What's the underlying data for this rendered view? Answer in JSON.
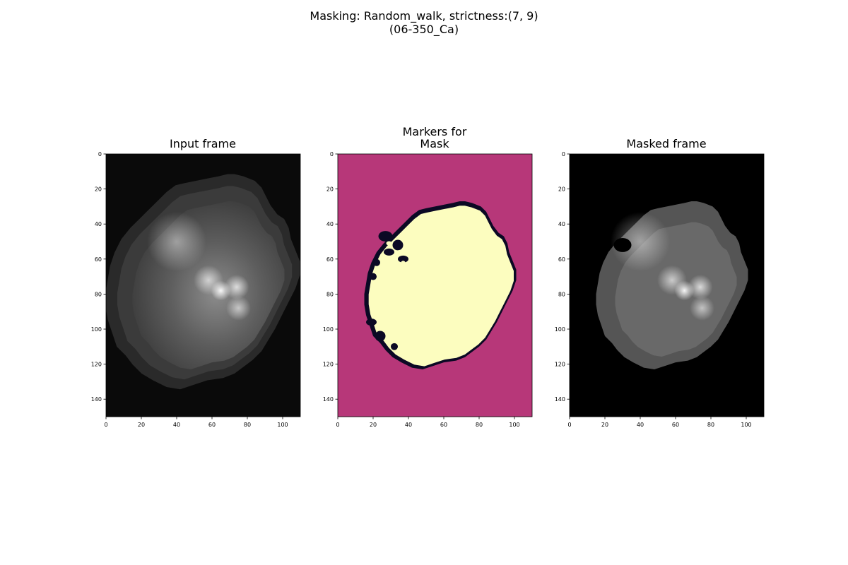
{
  "figure": {
    "suptitle_lines": [
      "Masking: Random_walk, strictness:(7, 9)",
      "(06-350_Ca)"
    ]
  },
  "panels": [
    {
      "title_lines": [
        "Input frame"
      ],
      "image": "grayscale fluorescence frame of a heart",
      "colormap": "gray",
      "x_ticks": [
        0,
        20,
        40,
        60,
        80,
        100
      ],
      "y_ticks": [
        0,
        20,
        40,
        60,
        80,
        100,
        120,
        140
      ]
    },
    {
      "title_lines": [
        "Markers for",
        "Mask"
      ],
      "image": "marker label map: background, boundary, foreground",
      "colormap": "magma",
      "x_ticks": [
        0,
        20,
        40,
        60,
        80,
        100
      ],
      "y_ticks": [
        0,
        20,
        40,
        60,
        80,
        100,
        120,
        140
      ]
    },
    {
      "title_lines": [
        "Masked frame"
      ],
      "image": "masked grayscale heart on black background",
      "colormap": "gray",
      "x_ticks": [
        0,
        20,
        40,
        60,
        80,
        100
      ],
      "y_ticks": [
        0,
        20,
        40,
        60,
        80,
        100,
        120,
        140
      ]
    }
  ],
  "image_extent": {
    "x": [
      0,
      110
    ],
    "y": [
      0,
      150
    ]
  },
  "mask_outline": [
    [
      72,
      27
    ],
    [
      76,
      28
    ],
    [
      81,
      30
    ],
    [
      84,
      33
    ],
    [
      86,
      37
    ],
    [
      88,
      41
    ],
    [
      91,
      45
    ],
    [
      94,
      47
    ],
    [
      96,
      51
    ],
    [
      97,
      56
    ],
    [
      99,
      61
    ],
    [
      101,
      66
    ],
    [
      101,
      72
    ],
    [
      99,
      78
    ],
    [
      96,
      84
    ],
    [
      93,
      90
    ],
    [
      90,
      96
    ],
    [
      87,
      101
    ],
    [
      84,
      106
    ],
    [
      80,
      110
    ],
    [
      76,
      113
    ],
    [
      72,
      116
    ],
    [
      67,
      118
    ],
    [
      60,
      119
    ],
    [
      54,
      121
    ],
    [
      48,
      123
    ],
    [
      42,
      122
    ],
    [
      36,
      119
    ],
    [
      31,
      116
    ],
    [
      27,
      112
    ],
    [
      24,
      108
    ],
    [
      20,
      104
    ],
    [
      18,
      98
    ],
    [
      16,
      92
    ],
    [
      15,
      86
    ],
    [
      15,
      80
    ],
    [
      16,
      74
    ],
    [
      17,
      68
    ],
    [
      19,
      62
    ],
    [
      22,
      56
    ],
    [
      26,
      51
    ],
    [
      30,
      47
    ],
    [
      34,
      43
    ],
    [
      38,
      39
    ],
    [
      42,
      35
    ],
    [
      46,
      32
    ],
    [
      50,
      31
    ],
    [
      55,
      30
    ],
    [
      60,
      29
    ],
    [
      65,
      28
    ],
    [
      69,
      27
    ]
  ],
  "bright_spots": [
    {
      "x": 65,
      "y": 78,
      "r": 4,
      "level": 0.95
    },
    {
      "x": 74,
      "y": 76,
      "r": 5,
      "level": 0.75
    },
    {
      "x": 58,
      "y": 72,
      "r": 6,
      "level": 0.65
    },
    {
      "x": 75,
      "y": 88,
      "r": 5,
      "level": 0.6
    },
    {
      "x": 40,
      "y": 50,
      "r": 12,
      "level": 0.45
    }
  ],
  "colors": {
    "marker_background": "#b73779",
    "marker_boundary": "#0b0924",
    "marker_foreground": "#fcfdbf",
    "masked_background": "#000000"
  }
}
